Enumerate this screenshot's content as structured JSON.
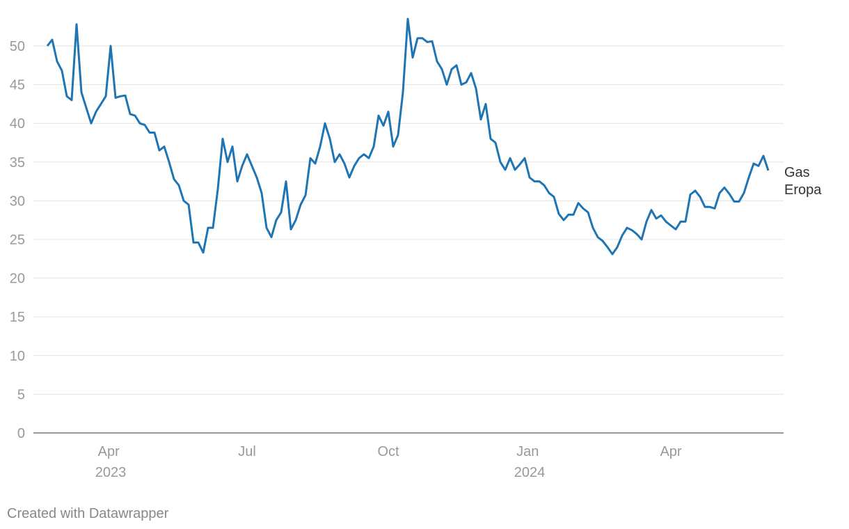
{
  "chart_data": {
    "type": "line",
    "categories": [
      null,
      null,
      null,
      null,
      null,
      null,
      null,
      null,
      null,
      null,
      null,
      null,
      null,
      "Apr 2023",
      null,
      null,
      null,
      null,
      null,
      null,
      null,
      null,
      null,
      null,
      null,
      null,
      null,
      null,
      null,
      null,
      null,
      null,
      null,
      null,
      null,
      null,
      null,
      null,
      null,
      null,
      null,
      "Jul",
      null,
      null,
      null,
      null,
      null,
      null,
      null,
      null,
      null,
      null,
      null,
      null,
      null,
      null,
      null,
      null,
      null,
      null,
      null,
      null,
      null,
      null,
      null,
      null,
      null,
      null,
      null,
      null,
      "Oct",
      null,
      null,
      null,
      null,
      null,
      null,
      null,
      null,
      null,
      null,
      null,
      null,
      null,
      null,
      null,
      null,
      null,
      null,
      null,
      null,
      null,
      null,
      null,
      null,
      null,
      null,
      null,
      null,
      "Jan 2024",
      null,
      null,
      null,
      null,
      null,
      null,
      null,
      null,
      null,
      null,
      null,
      null,
      null,
      null,
      null,
      null,
      null,
      null,
      null,
      null,
      null,
      null,
      null,
      null,
      null,
      null,
      null,
      null,
      "Apr",
      null,
      null,
      null,
      null,
      null,
      null,
      null,
      null,
      null,
      null,
      null,
      null,
      null,
      null,
      null,
      null,
      null,
      null,
      null,
      null
    ],
    "series": [
      {
        "name": "Gas Eropa",
        "color": "#1f75b3",
        "values": [
          50,
          50.8,
          48,
          46.8,
          43.5,
          43,
          52.8,
          44,
          42,
          40,
          41.5,
          42.5,
          43.5,
          50,
          43.3,
          43.5,
          43.6,
          41.2,
          41,
          40,
          39.8,
          38.8,
          38.8,
          36.5,
          37,
          35,
          32.8,
          32,
          30,
          29.5,
          24.6,
          24.6,
          23.3,
          26.5,
          26.5,
          31.5,
          38,
          35,
          37,
          32.5,
          34.5,
          36,
          34.5,
          33,
          31,
          26.5,
          25.3,
          27.5,
          28.5,
          32.5,
          26.3,
          27.5,
          29.5,
          30.7,
          35.5,
          34.8,
          37,
          40,
          38,
          35,
          36,
          34.8,
          33,
          34.5,
          35.5,
          36,
          35.5,
          37,
          41,
          39.7,
          41.5,
          37,
          38.5,
          44,
          53.5,
          48.5,
          51,
          51,
          50.5,
          50.6,
          48,
          47,
          45,
          47,
          47.5,
          45,
          45.3,
          46.5,
          44.5,
          40.5,
          42.5,
          38,
          37.5,
          35,
          34,
          35.5,
          34,
          34.7,
          35.5,
          33,
          32.5,
          32.5,
          32,
          31,
          30.5,
          28.3,
          27.5,
          28.2,
          28.2,
          29.7,
          29,
          28.5,
          26.5,
          25.3,
          24.8,
          24,
          23.1,
          24,
          25.5,
          26.5,
          26.2,
          25.7,
          25,
          27.3,
          28.8,
          27.7,
          28.1,
          27.3,
          26.8,
          26.3,
          27.3,
          27.3,
          30.8,
          31.3,
          30.5,
          29.2,
          29.2,
          29,
          31,
          31.7,
          30.9,
          29.9,
          29.9,
          31,
          33,
          34.8,
          34.5,
          35.8,
          33.9
        ]
      }
    ],
    "ylim": [
      0,
      55
    ],
    "yticks": [
      0,
      5,
      10,
      15,
      20,
      25,
      30,
      35,
      40,
      45,
      50
    ],
    "grid": true,
    "source": "Created with Datawrapper"
  }
}
